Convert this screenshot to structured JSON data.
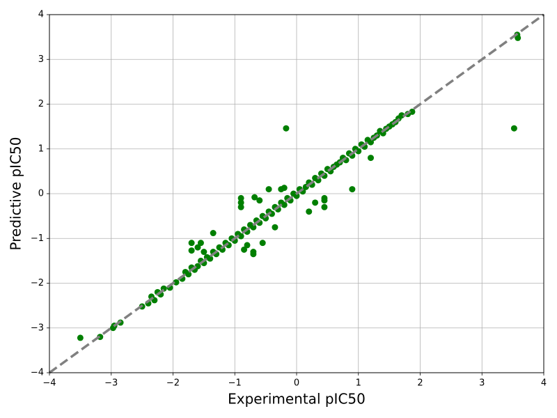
{
  "chart_data": {
    "type": "scatter",
    "xlabel": "Experimental pIC50",
    "ylabel": "Predictive pIC50",
    "color": "#007f00",
    "grid": true,
    "xlim": [
      -4,
      4
    ],
    "ylim": [
      -4,
      4
    ],
    "xticks": [
      {
        "value": -4,
        "label": "−4"
      },
      {
        "value": -3,
        "label": "−3"
      },
      {
        "value": -2,
        "label": "−2"
      },
      {
        "value": -1,
        "label": "−1"
      },
      0,
      1,
      2,
      3,
      4
    ],
    "yticks": [
      {
        "value": -4,
        "label": "−4"
      },
      {
        "value": -3,
        "label": "−3"
      },
      {
        "value": -2,
        "label": "−2"
      },
      {
        "value": -1,
        "label": "−1"
      },
      0,
      1,
      2,
      3,
      4
    ],
    "reference_line": {
      "x": [
        -4,
        4
      ],
      "y": [
        -4,
        4
      ],
      "color": "#808080"
    },
    "x": [
      -2.5,
      -2.4,
      -2.35,
      -2.3,
      -2.25,
      -2.2,
      -2.15,
      -2.05,
      -1.95,
      -1.85,
      -1.8,
      -1.75,
      -1.7,
      -1.65,
      -1.6,
      -1.55,
      -1.5,
      -1.45,
      -1.4,
      -1.35,
      -1.3,
      -1.25,
      -1.2,
      -1.15,
      -1.1,
      -1.05,
      -1.0,
      -0.95,
      -0.9,
      -0.85,
      -0.8,
      -0.75,
      -0.7,
      -0.65,
      -0.6,
      -0.55,
      -0.5,
      -0.45,
      -0.4,
      -0.35,
      -0.3,
      -0.25,
      -0.2,
      -0.15,
      -0.1,
      -0.05,
      0,
      0.05,
      0.1,
      0.15,
      0.2,
      0.25,
      0.3,
      0.35,
      0.4,
      0.45,
      0.5,
      0.55,
      0.6,
      0.65,
      0.7,
      0.75,
      0.8,
      0.85,
      0.9,
      0.95,
      1.0,
      1.05,
      1.1,
      1.15,
      1.2,
      1.25,
      1.3,
      1.35,
      1.4,
      1.45,
      1.5,
      1.55,
      1.6,
      1.65,
      1.7,
      1.8,
      1.87,
      -3.5,
      -3.18,
      -2.95,
      -2.97,
      -2.85,
      -0.17,
      3.52,
      3.57,
      3.58,
      0.9,
      -1.7,
      -1.7,
      -1.35,
      -0.9,
      -0.9,
      -0.9,
      -0.68,
      -0.6,
      0.45,
      0.45,
      0.45,
      0.3,
      0.75,
      1.2,
      -0.8,
      -0.55,
      -0.7,
      -0.7,
      -0.85,
      -0.45,
      -0.25,
      -0.2,
      0.2,
      -0.35,
      -1.55,
      -1.6,
      -1.5
    ],
    "values": [
      -2.52,
      -2.45,
      -2.3,
      -2.38,
      -2.2,
      -2.25,
      -2.12,
      -2.1,
      -1.98,
      -1.9,
      -1.75,
      -1.8,
      -1.65,
      -1.7,
      -1.62,
      -1.5,
      -1.55,
      -1.42,
      -1.45,
      -1.3,
      -1.35,
      -1.2,
      -1.25,
      -1.1,
      -1.15,
      -1.0,
      -1.05,
      -0.9,
      -0.95,
      -0.8,
      -0.85,
      -0.7,
      -0.75,
      -0.6,
      -0.65,
      -0.5,
      -0.55,
      -0.4,
      -0.45,
      -0.3,
      -0.35,
      -0.2,
      -0.25,
      -0.1,
      -0.15,
      0,
      -0.05,
      0.1,
      0.05,
      0.15,
      0.25,
      0.2,
      0.35,
      0.3,
      0.45,
      0.4,
      0.55,
      0.5,
      0.6,
      0.65,
      0.7,
      0.8,
      0.75,
      0.9,
      0.85,
      1.0,
      0.95,
      1.1,
      1.05,
      1.2,
      1.15,
      1.25,
      1.3,
      1.4,
      1.35,
      1.45,
      1.5,
      1.55,
      1.6,
      1.68,
      1.75,
      1.78,
      1.83,
      -3.22,
      -3.2,
      -2.95,
      -3.0,
      -2.88,
      1.46,
      1.46,
      3.55,
      3.48,
      0.1,
      -1.1,
      -1.27,
      -0.88,
      -0.1,
      -0.2,
      -0.3,
      -0.08,
      -0.15,
      -0.3,
      -0.15,
      -0.1,
      -0.2,
      0.8,
      0.8,
      -1.15,
      -1.1,
      -1.35,
      -1.3,
      -1.25,
      0.1,
      0.1,
      0.13,
      -0.4,
      -0.75,
      -1.1,
      -1.2,
      -1.3
    ]
  }
}
